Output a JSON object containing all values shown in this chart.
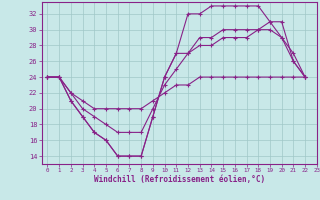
{
  "background_color": "#c8e8e8",
  "grid_color": "#a0c8c8",
  "line_color": "#882288",
  "marker": "+",
  "xlabel": "Windchill (Refroidissement éolien,°C)",
  "xlim": [
    -0.5,
    23
  ],
  "ylim": [
    13,
    33.5
  ],
  "yticks": [
    14,
    16,
    18,
    20,
    22,
    24,
    26,
    28,
    30,
    32
  ],
  "xticks": [
    0,
    1,
    2,
    3,
    4,
    5,
    6,
    7,
    8,
    9,
    10,
    11,
    12,
    13,
    14,
    15,
    16,
    17,
    18,
    19,
    20,
    21,
    22,
    23
  ],
  "series": [
    {
      "x": [
        0,
        1,
        2,
        3,
        4,
        5,
        6,
        7,
        8,
        9,
        10,
        11,
        12,
        13,
        14,
        15,
        16,
        17,
        18,
        19,
        20,
        21,
        22
      ],
      "y": [
        24,
        24,
        21,
        19,
        17,
        16,
        14,
        14,
        14,
        19,
        24,
        27,
        32,
        32,
        33,
        33,
        33,
        33,
        33,
        31,
        29,
        26,
        24
      ]
    },
    {
      "x": [
        0,
        1,
        2,
        3,
        4,
        5,
        6,
        7,
        8,
        9,
        10,
        11,
        12,
        13,
        14,
        15,
        16,
        17,
        18,
        19,
        20,
        21,
        22
      ],
      "y": [
        24,
        24,
        21,
        19,
        17,
        16,
        14,
        14,
        14,
        19,
        24,
        27,
        27,
        29,
        29,
        30,
        30,
        30,
        30,
        31,
        31,
        26,
        24
      ]
    },
    {
      "x": [
        0,
        1,
        2,
        3,
        4,
        5,
        6,
        7,
        8,
        9,
        10,
        11,
        12,
        13,
        14,
        15,
        16,
        17,
        18,
        19,
        20,
        21,
        22
      ],
      "y": [
        24,
        24,
        22,
        20,
        19,
        18,
        17,
        17,
        17,
        20,
        23,
        25,
        27,
        28,
        28,
        29,
        29,
        29,
        30,
        30,
        29,
        27,
        24
      ]
    },
    {
      "x": [
        0,
        1,
        2,
        3,
        4,
        5,
        6,
        7,
        8,
        9,
        10,
        11,
        12,
        13,
        14,
        15,
        16,
        17,
        18,
        19,
        20,
        21,
        22
      ],
      "y": [
        24,
        24,
        22,
        21,
        20,
        20,
        20,
        20,
        20,
        21,
        22,
        23,
        23,
        24,
        24,
        24,
        24,
        24,
        24,
        24,
        24,
        24,
        24
      ]
    }
  ]
}
